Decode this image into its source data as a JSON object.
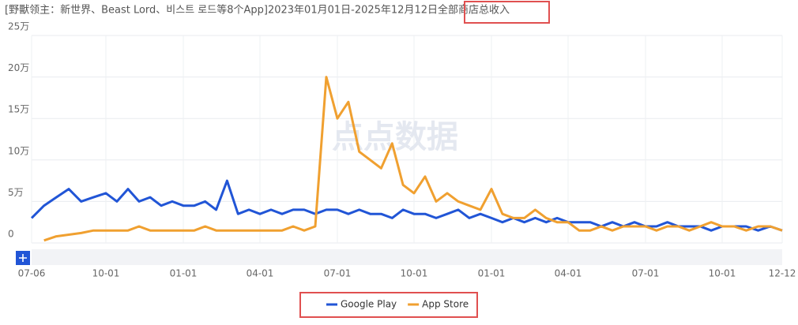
{
  "chart_data": {
    "type": "line",
    "title": "[野獸领主：新世界、Beast Lord、비스트 로드等8个App]2023年01月01日-2025年12月12日全部商店总收入",
    "watermark": "点点数据",
    "categories": [
      "07-06",
      null,
      null,
      null,
      null,
      null,
      "10-01",
      null,
      null,
      null,
      null,
      null,
      null,
      "01-01",
      null,
      null,
      null,
      null,
      null,
      null,
      "04-01",
      null,
      null,
      null,
      null,
      null,
      null,
      "07-01",
      null,
      null,
      null,
      null,
      null,
      null,
      "10-01",
      null,
      null,
      null,
      null,
      null,
      null,
      "01-01",
      null,
      null,
      null,
      null,
      null,
      null,
      "04-01",
      null,
      null,
      null,
      null,
      null,
      null,
      "07-01",
      null,
      null,
      null,
      null,
      null,
      null,
      "10-01",
      null,
      null,
      null,
      null,
      "12-12"
    ],
    "series": [
      {
        "name": "Google Play",
        "color": "#2155d6",
        "values": [
          30000,
          45000,
          55000,
          65000,
          50000,
          55000,
          60000,
          50000,
          65000,
          50000,
          55000,
          45000,
          50000,
          45000,
          45000,
          50000,
          40000,
          75000,
          35000,
          40000,
          35000,
          40000,
          35000,
          40000,
          40000,
          35000,
          40000,
          40000,
          35000,
          40000,
          35000,
          35000,
          30000,
          40000,
          35000,
          35000,
          30000,
          35000,
          40000,
          30000,
          35000,
          30000,
          25000,
          30000,
          25000,
          30000,
          25000,
          30000,
          25000,
          25000,
          25000,
          20000,
          25000,
          20000,
          25000,
          20000,
          20000,
          25000,
          20000,
          20000,
          20000,
          15000,
          20000,
          20000,
          20000,
          15000,
          20000,
          15000
        ]
      },
      {
        "name": "App Store",
        "color": "#f0a030",
        "values": [
          null,
          3000,
          8000,
          10000,
          12000,
          15000,
          15000,
          15000,
          15000,
          20000,
          15000,
          15000,
          15000,
          15000,
          15000,
          20000,
          15000,
          15000,
          15000,
          15000,
          15000,
          15000,
          15000,
          20000,
          15000,
          20000,
          200000,
          150000,
          170000,
          110000,
          100000,
          90000,
          120000,
          70000,
          60000,
          80000,
          50000,
          60000,
          50000,
          45000,
          40000,
          65000,
          35000,
          30000,
          30000,
          40000,
          30000,
          25000,
          25000,
          15000,
          15000,
          20000,
          15000,
          20000,
          20000,
          20000,
          15000,
          20000,
          20000,
          15000,
          20000,
          25000,
          20000,
          20000,
          15000,
          20000,
          20000,
          15000
        ]
      }
    ],
    "ylim": [
      0,
      250000
    ],
    "yticks": [
      0,
      {
        "value": 50000,
        "label": "5万"
      },
      {
        "value": 100000,
        "label": "10万"
      },
      {
        "value": 150000,
        "label": "15万"
      },
      {
        "value": 200000,
        "label": "20万"
      },
      {
        "value": 250000,
        "label": "25万"
      }
    ],
    "grid": true
  }
}
